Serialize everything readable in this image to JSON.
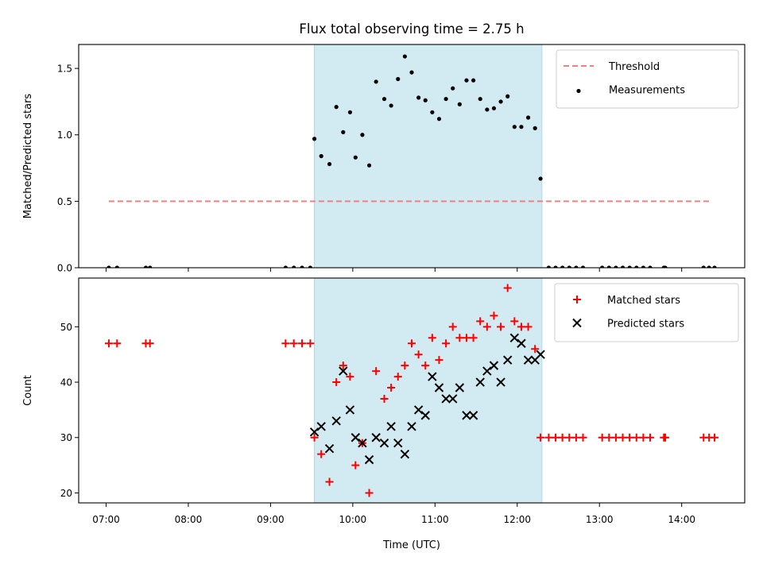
{
  "chart_data": {
    "type": "scatter",
    "title": "Flux total observing time = 2.75 h",
    "xlabel": "Time (UTC)",
    "x_ticks": [
      "07:00",
      "08:00",
      "09:00",
      "10:00",
      "11:00",
      "12:00",
      "13:00",
      "14:00"
    ],
    "xlim": [
      "06:40",
      "14:46"
    ],
    "observing_window": {
      "start": "09:32",
      "end": "12:18",
      "color": "#add8e6"
    },
    "panels": [
      {
        "ylabel": "Matched/Predicted stars",
        "ylim": [
          0,
          1.68
        ],
        "y_ticks": [
          "0.0",
          "0.5",
          "1.0",
          "1.5"
        ],
        "legend_position": "top-right",
        "threshold": {
          "name": "Threshold",
          "y": 0.5,
          "x_start": "07:02",
          "x_end": "14:20",
          "color": "#f08080"
        },
        "series": [
          {
            "name": "Measurements",
            "marker": "dot",
            "color": "#000000",
            "points": [
              [
                "07:02",
                0
              ],
              [
                "07:08",
                0
              ],
              [
                "07:29",
                0
              ],
              [
                "07:32",
                0
              ],
              [
                "09:11",
                0
              ],
              [
                "09:17",
                0
              ],
              [
                "09:23",
                0
              ],
              [
                "09:29",
                0
              ],
              [
                "09:32",
                0.97
              ],
              [
                "09:37",
                0.84
              ],
              [
                "09:43",
                0.78
              ],
              [
                "09:48",
                1.21
              ],
              [
                "09:53",
                1.02
              ],
              [
                "09:58",
                1.17
              ],
              [
                "10:02",
                0.83
              ],
              [
                "10:07",
                1.0
              ],
              [
                "10:12",
                0.77
              ],
              [
                "10:17",
                1.4
              ],
              [
                "10:23",
                1.27
              ],
              [
                "10:28",
                1.22
              ],
              [
                "10:33",
                1.42
              ],
              [
                "10:38",
                1.59
              ],
              [
                "10:43",
                1.47
              ],
              [
                "10:48",
                1.28
              ],
              [
                "10:53",
                1.26
              ],
              [
                "10:58",
                1.17
              ],
              [
                "11:03",
                1.12
              ],
              [
                "11:08",
                1.27
              ],
              [
                "11:13",
                1.35
              ],
              [
                "11:18",
                1.23
              ],
              [
                "11:23",
                1.41
              ],
              [
                "11:28",
                1.41
              ],
              [
                "11:33",
                1.27
              ],
              [
                "11:38",
                1.19
              ],
              [
                "11:43",
                1.2
              ],
              [
                "11:48",
                1.25
              ],
              [
                "11:53",
                1.29
              ],
              [
                "11:58",
                1.06
              ],
              [
                "12:03",
                1.06
              ],
              [
                "12:08",
                1.13
              ],
              [
                "12:13",
                1.05
              ],
              [
                "12:17",
                0.67
              ],
              [
                "12:23",
                0
              ],
              [
                "12:28",
                0
              ],
              [
                "12:33",
                0
              ],
              [
                "12:38",
                0
              ],
              [
                "12:43",
                0
              ],
              [
                "12:48",
                0
              ],
              [
                "13:02",
                0
              ],
              [
                "13:07",
                0
              ],
              [
                "13:12",
                0
              ],
              [
                "13:17",
                0
              ],
              [
                "13:22",
                0
              ],
              [
                "13:27",
                0
              ],
              [
                "13:32",
                0
              ],
              [
                "13:37",
                0
              ],
              [
                "13:47",
                0
              ],
              [
                "13:48",
                0
              ],
              [
                "14:16",
                0
              ],
              [
                "14:20",
                0
              ],
              [
                "14:24",
                0
              ]
            ]
          }
        ]
      },
      {
        "ylabel": "Count",
        "ylim": [
          18.2,
          58.8
        ],
        "y_ticks": [
          "20",
          "30",
          "40",
          "50"
        ],
        "legend_position": "top-right",
        "series": [
          {
            "name": "Matched stars",
            "marker": "plus",
            "color": "#ff0000",
            "points": [
              [
                "07:02",
                47
              ],
              [
                "07:08",
                47
              ],
              [
                "07:29",
                47
              ],
              [
                "07:32",
                47
              ],
              [
                "09:11",
                47
              ],
              [
                "09:17",
                47
              ],
              [
                "09:23",
                47
              ],
              [
                "09:29",
                47
              ],
              [
                "09:32",
                30
              ],
              [
                "09:37",
                27
              ],
              [
                "09:43",
                22
              ],
              [
                "09:48",
                40
              ],
              [
                "09:53",
                43
              ],
              [
                "09:58",
                41
              ],
              [
                "10:02",
                25
              ],
              [
                "10:07",
                29
              ],
              [
                "10:12",
                20
              ],
              [
                "10:17",
                42
              ],
              [
                "10:23",
                37
              ],
              [
                "10:28",
                39
              ],
              [
                "10:33",
                41
              ],
              [
                "10:38",
                43
              ],
              [
                "10:43",
                47
              ],
              [
                "10:48",
                45
              ],
              [
                "10:53",
                43
              ],
              [
                "10:58",
                48
              ],
              [
                "11:03",
                44
              ],
              [
                "11:08",
                47
              ],
              [
                "11:13",
                50
              ],
              [
                "11:18",
                48
              ],
              [
                "11:23",
                48
              ],
              [
                "11:28",
                48
              ],
              [
                "11:33",
                51
              ],
              [
                "11:38",
                50
              ],
              [
                "11:43",
                52
              ],
              [
                "11:48",
                50
              ],
              [
                "11:53",
                57
              ],
              [
                "11:58",
                51
              ],
              [
                "12:03",
                50
              ],
              [
                "12:08",
                50
              ],
              [
                "12:13",
                46
              ],
              [
                "12:17",
                30
              ],
              [
                "12:23",
                30
              ],
              [
                "12:28",
                30
              ],
              [
                "12:33",
                30
              ],
              [
                "12:38",
                30
              ],
              [
                "12:43",
                30
              ],
              [
                "12:48",
                30
              ],
              [
                "13:02",
                30
              ],
              [
                "13:07",
                30
              ],
              [
                "13:12",
                30
              ],
              [
                "13:17",
                30
              ],
              [
                "13:22",
                30
              ],
              [
                "13:27",
                30
              ],
              [
                "13:32",
                30
              ],
              [
                "13:37",
                30
              ],
              [
                "13:47",
                30
              ],
              [
                "13:48",
                30
              ],
              [
                "14:16",
                30
              ],
              [
                "14:20",
                30
              ],
              [
                "14:24",
                30
              ]
            ]
          },
          {
            "name": "Predicted stars",
            "marker": "x",
            "color": "#000000",
            "points": [
              [
                "09:32",
                31
              ],
              [
                "09:37",
                32
              ],
              [
                "09:43",
                28
              ],
              [
                "09:48",
                33
              ],
              [
                "09:53",
                42
              ],
              [
                "09:58",
                35
              ],
              [
                "10:02",
                30
              ],
              [
                "10:07",
                29
              ],
              [
                "10:12",
                26
              ],
              [
                "10:17",
                30
              ],
              [
                "10:23",
                29
              ],
              [
                "10:28",
                32
              ],
              [
                "10:33",
                29
              ],
              [
                "10:38",
                27
              ],
              [
                "10:43",
                32
              ],
              [
                "10:48",
                35
              ],
              [
                "10:53",
                34
              ],
              [
                "10:58",
                41
              ],
              [
                "11:03",
                39
              ],
              [
                "11:08",
                37
              ],
              [
                "11:13",
                37
              ],
              [
                "11:18",
                39
              ],
              [
                "11:23",
                34
              ],
              [
                "11:28",
                34
              ],
              [
                "11:33",
                40
              ],
              [
                "11:38",
                42
              ],
              [
                "11:43",
                43
              ],
              [
                "11:48",
                40
              ],
              [
                "11:53",
                44
              ],
              [
                "11:58",
                48
              ],
              [
                "12:03",
                47
              ],
              [
                "12:08",
                44
              ],
              [
                "12:13",
                44
              ],
              [
                "12:17",
                45
              ]
            ]
          }
        ]
      }
    ]
  }
}
